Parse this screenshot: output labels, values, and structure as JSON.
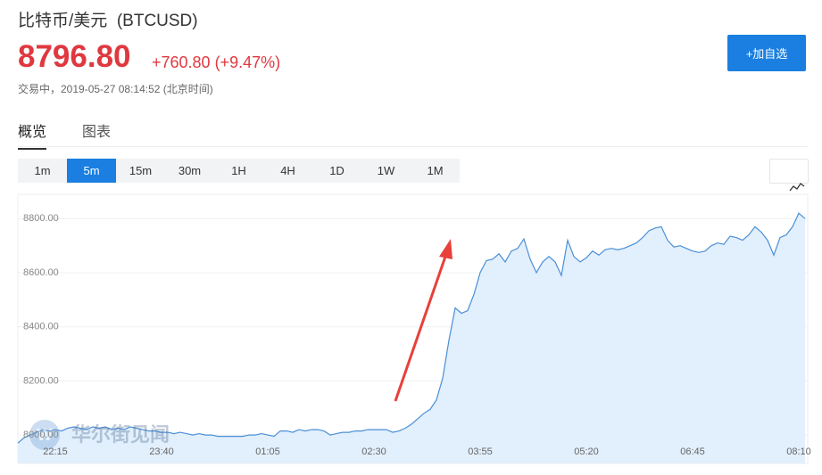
{
  "header": {
    "title": "比特币/美元  (BTCUSD)",
    "price": "8796.80",
    "change": "+760.80 (+9.47%)",
    "status": "交易中，2019-05-27 08:14:52 (北京时间)",
    "button": "+加自选"
  },
  "tabs": [
    "概览",
    "图表"
  ],
  "intervals": [
    "1m",
    "5m",
    "15m",
    "30m",
    "1H",
    "4H",
    "1D",
    "1W",
    "1M"
  ],
  "active_interval": "5m",
  "watermark": "华尔街见闻",
  "chart_data": {
    "type": "area",
    "color": "#4a8fd8",
    "fill": "#e2effc",
    "categories": [
      null,
      null,
      null,
      null,
      null,
      null,
      "22:15",
      null,
      null,
      null,
      null,
      null,
      null,
      null,
      null,
      null,
      null,
      null,
      null,
      null,
      null,
      null,
      null,
      "23:40",
      null,
      null,
      null,
      null,
      null,
      null,
      null,
      null,
      null,
      null,
      null,
      null,
      null,
      null,
      null,
      null,
      "01:05",
      null,
      null,
      null,
      null,
      null,
      null,
      null,
      null,
      null,
      null,
      null,
      null,
      null,
      null,
      null,
      null,
      "02:30",
      null,
      null,
      null,
      null,
      null,
      null,
      null,
      null,
      null,
      null,
      null,
      null,
      null,
      null,
      null,
      null,
      "03:55",
      null,
      null,
      null,
      null,
      null,
      null,
      null,
      null,
      null,
      null,
      null,
      null,
      null,
      null,
      null,
      null,
      "05:20",
      null,
      null,
      null,
      null,
      null,
      null,
      null,
      null,
      null,
      null,
      null,
      null,
      null,
      null,
      null,
      null,
      "06:45",
      null,
      null,
      null,
      null,
      null,
      null,
      null,
      null,
      null,
      null,
      null,
      null,
      null,
      null,
      null,
      null,
      "08:10",
      null
    ],
    "values": [
      7970,
      7990,
      8000,
      8010,
      8020,
      8015,
      8020,
      8015,
      8025,
      8030,
      8025,
      8020,
      8030,
      8025,
      8030,
      8020,
      8025,
      8020,
      8030,
      8025,
      8020,
      8015,
      8015,
      8010,
      8010,
      8005,
      8010,
      8005,
      8000,
      8005,
      8000,
      8000,
      7995,
      7995,
      7995,
      7995,
      7995,
      8000,
      8000,
      8005,
      8000,
      7995,
      8015,
      8015,
      8010,
      8020,
      8015,
      8020,
      8020,
      8015,
      8000,
      8005,
      8010,
      8010,
      8015,
      8015,
      8020,
      8020,
      8020,
      8020,
      8010,
      8015,
      8025,
      8040,
      8060,
      8080,
      8095,
      8130,
      8210,
      8350,
      8470,
      8450,
      8460,
      8520,
      8600,
      8645,
      8650,
      8670,
      8640,
      8680,
      8690,
      8725,
      8650,
      8600,
      8640,
      8660,
      8640,
      8590,
      8720,
      8660,
      8640,
      8655,
      8680,
      8665,
      8685,
      8690,
      8685,
      8690,
      8700,
      8710,
      8730,
      8755,
      8765,
      8770,
      8720,
      8695,
      8700,
      8690,
      8680,
      8675,
      8680,
      8700,
      8710,
      8705,
      8735,
      8730,
      8720,
      8740,
      8770,
      8750,
      8720,
      8665,
      8730,
      8740,
      8770,
      8820,
      8800
    ],
    "ylim": [
      7895,
      8890
    ],
    "yticks": [
      {
        "value": 8000,
        "label": "8000.00"
      },
      {
        "value": 8200,
        "label": "8200.00"
      },
      {
        "value": 8400,
        "label": "8400.00"
      },
      {
        "value": 8600,
        "label": "8600.00"
      },
      {
        "value": 8800,
        "label": "8800.00"
      }
    ],
    "grid": true
  }
}
